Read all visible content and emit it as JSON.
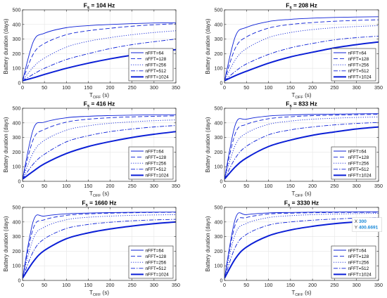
{
  "figure": {
    "y_label": "Battery duration (days)",
    "x_label_main": "T",
    "x_label_sub": "OFF",
    "x_label_unit": " (s)",
    "title_main": "F",
    "title_sub": "s"
  },
  "colors": {
    "series": "#0b1fd6",
    "grid": "#e6e6e6",
    "axis": "#262626"
  },
  "datatip": {
    "label_x": "X",
    "value_x": "300",
    "label_y": "Y",
    "value_y": "400.6691",
    "value_color": "#1b8ad8"
  },
  "chart_data": [
    {
      "type": "line",
      "title_value": " = 104 Hz",
      "xlim": [
        0,
        350
      ],
      "ylim": [
        0,
        500
      ],
      "xticks": [
        0,
        50,
        100,
        150,
        200,
        250,
        300,
        350
      ],
      "yticks": [
        0,
        100,
        200,
        300,
        400,
        500
      ],
      "grid": true,
      "legend": "lower-right",
      "series": [
        {
          "name": "nFFT=64",
          "x": [
            0,
            25,
            50,
            100,
            150,
            200,
            250,
            300,
            350
          ],
          "y": [
            15,
            285,
            340,
            378,
            392,
            400,
            406,
            410,
            412
          ]
        },
        {
          "name": "nFFT=128",
          "x": [
            0,
            25,
            50,
            100,
            150,
            200,
            250,
            300,
            350
          ],
          "y": [
            15,
            200,
            270,
            330,
            357,
            374,
            388,
            398,
            405
          ]
        },
        {
          "name": "nFFT=256",
          "x": [
            0,
            25,
            50,
            100,
            150,
            200,
            250,
            300,
            350
          ],
          "y": [
            15,
            110,
            170,
            245,
            285,
            310,
            330,
            345,
            357
          ]
        },
        {
          "name": "nFFT=512",
          "x": [
            0,
            25,
            50,
            100,
            150,
            200,
            250,
            300,
            350
          ],
          "y": [
            15,
            60,
            100,
            160,
            200,
            235,
            262,
            282,
            300
          ]
        },
        {
          "name": "nFFT=1024",
          "x": [
            0,
            25,
            50,
            100,
            150,
            200,
            250,
            300,
            350
          ],
          "y": [
            15,
            35,
            58,
            100,
            135,
            165,
            190,
            210,
            228
          ]
        }
      ]
    },
    {
      "type": "line",
      "title_value": " = 208 Hz",
      "xlim": [
        0,
        350
      ],
      "ylim": [
        0,
        500
      ],
      "xticks": [
        0,
        50,
        100,
        150,
        200,
        250,
        300,
        350
      ],
      "yticks": [
        0,
        100,
        200,
        300,
        400,
        500
      ],
      "grid": true,
      "legend": "lower-right",
      "series": [
        {
          "name": "nFFT=64",
          "x": [
            0,
            25,
            50,
            100,
            150,
            200,
            250,
            300,
            350
          ],
          "y": [
            15,
            320,
            380,
            420,
            435,
            443,
            448,
            451,
            453
          ]
        },
        {
          "name": "nFFT=128",
          "x": [
            0,
            25,
            50,
            100,
            150,
            200,
            250,
            300,
            350
          ],
          "y": [
            15,
            240,
            315,
            375,
            400,
            413,
            422,
            428,
            432
          ]
        },
        {
          "name": "nFFT=256",
          "x": [
            0,
            25,
            50,
            100,
            150,
            200,
            250,
            300,
            350
          ],
          "y": [
            15,
            160,
            235,
            310,
            345,
            365,
            378,
            386,
            392
          ]
        },
        {
          "name": "nFFT=512",
          "x": [
            0,
            25,
            50,
            100,
            150,
            200,
            250,
            300,
            350
          ],
          "y": [
            15,
            80,
            130,
            195,
            240,
            270,
            295,
            310,
            320
          ]
        },
        {
          "name": "nFFT=1024",
          "x": [
            0,
            25,
            50,
            100,
            150,
            200,
            250,
            300,
            350
          ],
          "y": [
            15,
            50,
            80,
            135,
            178,
            210,
            240,
            262,
            280
          ]
        }
      ]
    },
    {
      "type": "line",
      "title_value": " = 416 Hz",
      "xlim": [
        0,
        350
      ],
      "ylim": [
        0,
        500
      ],
      "xticks": [
        0,
        50,
        100,
        150,
        200,
        250,
        300,
        350
      ],
      "yticks": [
        0,
        100,
        200,
        300,
        400,
        500
      ],
      "grid": true,
      "legend": "lower-right",
      "series": [
        {
          "name": "nFFT=64",
          "x": [
            0,
            25,
            50,
            100,
            150,
            200,
            250,
            300,
            350
          ],
          "y": [
            15,
            360,
            405,
            435,
            445,
            450,
            453,
            455,
            456
          ]
        },
        {
          "name": "nFFT=128",
          "x": [
            0,
            25,
            50,
            100,
            150,
            200,
            250,
            300,
            350
          ],
          "y": [
            15,
            290,
            355,
            405,
            425,
            435,
            441,
            445,
            448
          ]
        },
        {
          "name": "nFFT=256",
          "x": [
            0,
            25,
            50,
            100,
            150,
            200,
            250,
            300,
            350
          ],
          "y": [
            15,
            200,
            280,
            350,
            380,
            397,
            407,
            415,
            420
          ]
        },
        {
          "name": "nFFT=512",
          "x": [
            0,
            25,
            50,
            100,
            150,
            200,
            250,
            300,
            350
          ],
          "y": [
            15,
            120,
            185,
            270,
            312,
            340,
            358,
            372,
            382
          ]
        },
        {
          "name": "nFFT=1024",
          "x": [
            0,
            25,
            50,
            100,
            150,
            200,
            250,
            300,
            350
          ],
          "y": [
            15,
            70,
            120,
            190,
            238,
            272,
            300,
            322,
            340
          ]
        }
      ]
    },
    {
      "type": "line",
      "title_value": " = 833 Hz",
      "xlim": [
        0,
        350
      ],
      "ylim": [
        0,
        500
      ],
      "xticks": [
        0,
        50,
        100,
        150,
        200,
        250,
        300,
        350
      ],
      "yticks": [
        0,
        100,
        200,
        300,
        400,
        500
      ],
      "grid": true,
      "legend": "lower-right",
      "series": [
        {
          "name": "nFFT=64",
          "x": [
            0,
            25,
            50,
            100,
            150,
            200,
            250,
            300,
            350
          ],
          "y": [
            15,
            390,
            425,
            447,
            454,
            458,
            460,
            462,
            463
          ]
        },
        {
          "name": "nFFT=128",
          "x": [
            0,
            25,
            50,
            100,
            150,
            200,
            250,
            300,
            350
          ],
          "y": [
            15,
            330,
            390,
            428,
            442,
            449,
            453,
            456,
            458
          ]
        },
        {
          "name": "nFFT=256",
          "x": [
            0,
            25,
            50,
            100,
            150,
            200,
            250,
            300,
            350
          ],
          "y": [
            15,
            250,
            330,
            390,
            412,
            425,
            432,
            437,
            440
          ]
        },
        {
          "name": "nFFT=512",
          "x": [
            0,
            25,
            50,
            100,
            150,
            200,
            250,
            300,
            350
          ],
          "y": [
            15,
            160,
            240,
            318,
            352,
            372,
            386,
            396,
            403
          ]
        },
        {
          "name": "nFFT=1024",
          "x": [
            0,
            25,
            50,
            100,
            150,
            200,
            250,
            300,
            350
          ],
          "y": [
            15,
            100,
            160,
            238,
            282,
            315,
            338,
            358,
            372
          ]
        }
      ]
    },
    {
      "type": "line",
      "title_value": " = 1660 Hz",
      "xlim": [
        0,
        350
      ],
      "ylim": [
        0,
        500
      ],
      "xticks": [
        0,
        50,
        100,
        150,
        200,
        250,
        300,
        350
      ],
      "yticks": [
        0,
        100,
        200,
        300,
        400,
        500
      ],
      "grid": true,
      "legend": "lower-right",
      "series": [
        {
          "name": "nFFT=64",
          "x": [
            0,
            25,
            50,
            100,
            150,
            200,
            250,
            300,
            350
          ],
          "y": [
            15,
            410,
            440,
            456,
            461,
            464,
            466,
            467,
            468
          ]
        },
        {
          "name": "nFFT=128",
          "x": [
            0,
            25,
            50,
            100,
            150,
            200,
            250,
            300,
            350
          ],
          "y": [
            15,
            360,
            415,
            445,
            455,
            460,
            463,
            465,
            466
          ]
        },
        {
          "name": "nFFT=256",
          "x": [
            0,
            25,
            50,
            100,
            150,
            200,
            250,
            300,
            350
          ],
          "y": [
            15,
            290,
            365,
            415,
            432,
            440,
            445,
            448,
            450
          ]
        },
        {
          "name": "nFFT=512",
          "x": [
            0,
            25,
            50,
            100,
            150,
            200,
            250,
            300,
            350
          ],
          "y": [
            15,
            200,
            285,
            355,
            383,
            398,
            408,
            414,
            418
          ]
        },
        {
          "name": "nFFT=1024",
          "x": [
            0,
            25,
            50,
            100,
            150,
            200,
            250,
            300,
            350
          ],
          "y": [
            15,
            130,
            205,
            285,
            325,
            352,
            372,
            388,
            400
          ]
        }
      ]
    },
    {
      "type": "line",
      "title_value": " = 3330 Hz",
      "xlim": [
        0,
        350
      ],
      "ylim": [
        0,
        500
      ],
      "xticks": [
        0,
        50,
        100,
        150,
        200,
        250,
        300,
        350
      ],
      "yticks": [
        0,
        100,
        200,
        300,
        400,
        500
      ],
      "grid": true,
      "legend": "lower-right",
      "series": [
        {
          "name": "nFFT=64",
          "x": [
            0,
            25,
            50,
            100,
            150,
            200,
            250,
            300,
            350
          ],
          "y": [
            15,
            425,
            450,
            462,
            465,
            467,
            468,
            469,
            469
          ]
        },
        {
          "name": "nFFT=128",
          "x": [
            0,
            25,
            50,
            100,
            150,
            200,
            250,
            300,
            350
          ],
          "y": [
            15,
            385,
            430,
            454,
            460,
            463,
            465,
            466,
            467
          ]
        },
        {
          "name": "nFFT=256",
          "x": [
            0,
            25,
            50,
            100,
            150,
            200,
            250,
            300,
            350
          ],
          "y": [
            15,
            320,
            390,
            430,
            443,
            450,
            454,
            457,
            459
          ]
        },
        {
          "name": "nFFT=512",
          "x": [
            0,
            25,
            50,
            100,
            150,
            200,
            250,
            300,
            350
          ],
          "y": [
            15,
            230,
            315,
            378,
            400,
            412,
            420,
            426,
            430
          ]
        },
        {
          "name": "nFFT=1024",
          "x": [
            0,
            25,
            50,
            100,
            150,
            200,
            250,
            300,
            350
          ],
          "y": [
            15,
            150,
            228,
            305,
            345,
            370,
            388,
            400.6691,
            410
          ]
        }
      ],
      "datatip": {
        "x": 300,
        "y": 400.6691
      }
    }
  ]
}
